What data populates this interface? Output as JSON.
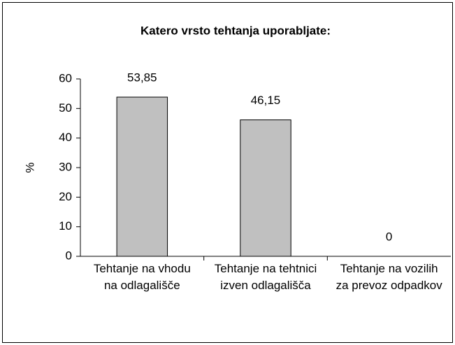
{
  "chart_data": {
    "type": "bar",
    "title": "Katero vrsto tehtanja uporabljate:",
    "y_label": "%",
    "categories": [
      "Tehtanje na vhodu na odlagališče",
      "Tehtanje na tehtnici izven odlagališča",
      "Tehtanje na vozilih za prevoz odpadkov"
    ],
    "values": [
      53.85,
      46.15,
      0
    ],
    "value_labels": [
      "53,85",
      "46,15",
      "0"
    ],
    "color": "#c0c0c0",
    "ylim": [
      0,
      60
    ],
    "yticks": [
      0,
      10,
      20,
      30,
      40,
      50,
      60
    ],
    "grid": false
  }
}
